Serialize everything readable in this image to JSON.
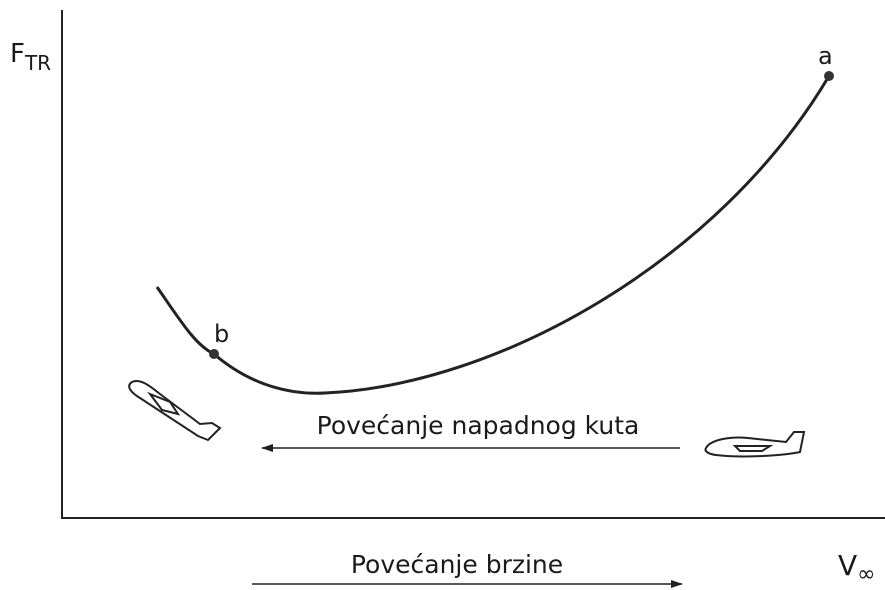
{
  "axes": {
    "y_label": {
      "main": "F",
      "sub": "TR"
    },
    "x_label": {
      "main": "V",
      "sub": "∞"
    }
  },
  "points": [
    {
      "label": "a"
    },
    {
      "label": "b"
    }
  ],
  "arrows": [
    {
      "label": "Povećanje napadnog kuta"
    },
    {
      "label": "Povećanje brzine"
    }
  ]
}
